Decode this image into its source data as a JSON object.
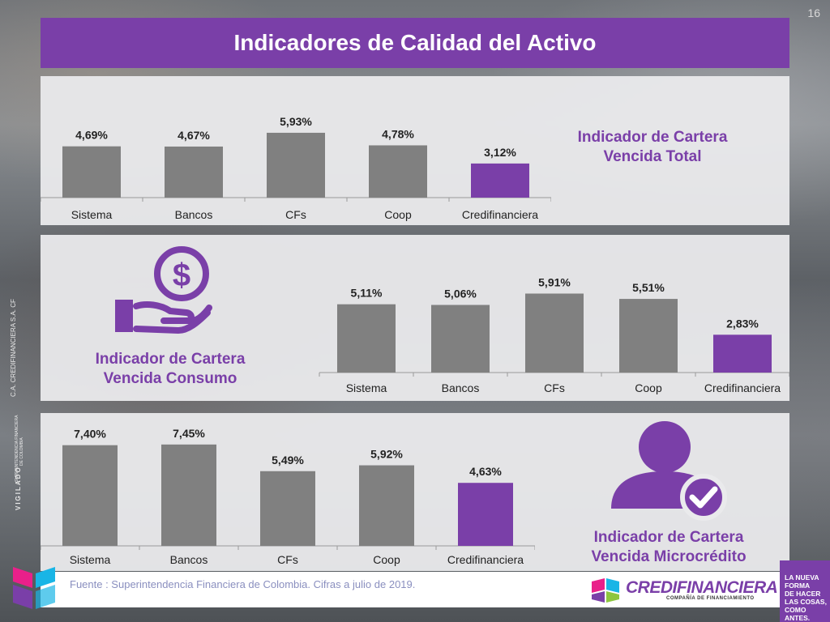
{
  "page_number": "16",
  "title": "Indicadores de Calidad del Activo",
  "colors": {
    "purple": "#7a3fa8",
    "gray": "#808080",
    "panel": "#eaeaec",
    "label": "#222222"
  },
  "icons": {
    "top_middle": "dollar-hand-icon",
    "bottom_right": "user-check-icon"
  },
  "panels": {
    "total": {
      "heading_line1": "Indicador de Cartera",
      "heading_line2": "Vencida Total"
    },
    "consumo": {
      "heading_line1": "Indicador de Cartera",
      "heading_line2": "Vencida Consumo"
    },
    "micro": {
      "heading_line1": "Indicador de Cartera",
      "heading_line2": "Vencida Microcrédito"
    }
  },
  "chart_data": [
    {
      "type": "bar",
      "categories": [
        "Sistema",
        "Bancos",
        "CFs",
        "Coop",
        "Credifinanciera"
      ],
      "values": [
        4.69,
        4.67,
        5.93,
        4.78,
        3.12
      ],
      "value_labels": [
        "4,69%",
        "4,67%",
        "5,93%",
        "4,78%",
        "3,12%"
      ],
      "highlight_index": 4
    },
    {
      "type": "bar",
      "categories": [
        "Sistema",
        "Bancos",
        "CFs",
        "Coop",
        "Credifinanciera"
      ],
      "values": [
        5.11,
        5.06,
        5.91,
        5.51,
        2.83
      ],
      "value_labels": [
        "5,11%",
        "5,06%",
        "5,91%",
        "5,51%",
        "2,83%"
      ],
      "highlight_index": 4
    },
    {
      "type": "bar",
      "categories": [
        "Sistema",
        "Bancos",
        "CFs",
        "Coop",
        "Credifinanciera"
      ],
      "values": [
        7.4,
        7.45,
        5.49,
        5.92,
        4.63
      ],
      "value_labels": [
        "7,40%",
        "7,45%",
        "5,49%",
        "5,92%",
        "4,63%"
      ],
      "highlight_index": 4
    }
  ],
  "source": "Fuente : Superintendencia Financiera de Colombia. Cifras a julio de 2019.",
  "brand": {
    "name": "CREDIFINANCIERA",
    "subtitle": "COMPAÑÍA DE FINANCIAMIENTO"
  },
  "slogan": [
    "LA NUEVA",
    "FORMA",
    "DE HACER",
    "LAS COSAS,",
    "COMO",
    "ANTES."
  ],
  "side": {
    "company": "C.A. CREDIFINANCIERA S.A. CF",
    "super_line1": "SUPERINTENDENCIA FINANCIERA",
    "super_line2": "DE COLOMBIA",
    "vigilado": "VIGILADO"
  }
}
